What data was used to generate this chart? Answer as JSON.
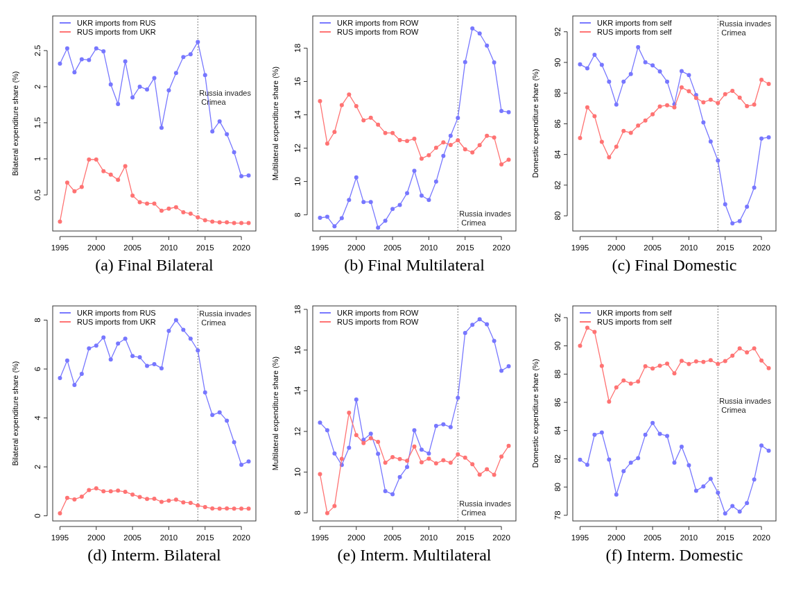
{
  "chart_data": [
    {
      "type": "line",
      "title": "(a) Final Bilateral",
      "ylabel": "Bilateral expenditure share (%)",
      "x": [
        1995,
        1996,
        1997,
        1998,
        1999,
        2000,
        2001,
        2002,
        2003,
        2004,
        2005,
        2006,
        2007,
        2008,
        2009,
        2010,
        2011,
        2012,
        2013,
        2014,
        2015,
        2016,
        2017,
        2018,
        2019,
        2020,
        2021
      ],
      "xlim": [
        1994,
        2022
      ],
      "xticks": [
        1995,
        2000,
        2005,
        2010,
        2015,
        2020
      ],
      "ylim": [
        0.0,
        2.98
      ],
      "yticks": [
        0.5,
        1.0,
        1.5,
        2.0,
        2.5
      ],
      "marker": "circle",
      "line_style": "solid",
      "legend": "top left",
      "series": [
        {
          "name": "UKR imports from RUS",
          "color": "#7777ff",
          "values": [
            2.32,
            2.53,
            2.2,
            2.38,
            2.37,
            2.53,
            2.49,
            2.03,
            1.76,
            2.35,
            1.85,
            2.0,
            1.96,
            2.12,
            1.43,
            1.95,
            2.19,
            2.41,
            2.45,
            2.62,
            2.16,
            1.38,
            1.52,
            1.34,
            1.09,
            0.76,
            0.77
          ]
        },
        {
          "name": "RUS imports from UKR",
          "color": "#ff7373",
          "values": [
            0.13,
            0.67,
            0.55,
            0.61,
            0.99,
            0.99,
            0.83,
            0.78,
            0.71,
            0.9,
            0.49,
            0.4,
            0.38,
            0.38,
            0.28,
            0.31,
            0.33,
            0.26,
            0.24,
            0.19,
            0.15,
            0.13,
            0.12,
            0.12,
            0.11,
            0.11,
            0.11
          ]
        }
      ],
      "ref_lines": [
        {
          "axis": "x",
          "value": 2014,
          "line_style": "dotted",
          "color": "#555555",
          "label": "Russia invades\nCrimea"
        }
      ]
    },
    {
      "type": "line",
      "title": "(b) Final Multilateral",
      "ylabel": "Multilateral expenditure share (%)",
      "x": [
        1995,
        1996,
        1997,
        1998,
        1999,
        2000,
        2001,
        2002,
        2003,
        2004,
        2005,
        2006,
        2007,
        2008,
        2009,
        2010,
        2011,
        2012,
        2013,
        2014,
        2015,
        2016,
        2017,
        2018,
        2019,
        2020,
        2021
      ],
      "xlim": [
        1994,
        2022
      ],
      "xticks": [
        1995,
        2000,
        2005,
        2010,
        2015,
        2020
      ],
      "ylim": [
        7.03,
        19.93
      ],
      "yticks": [
        8,
        10,
        12,
        14,
        16,
        18
      ],
      "marker": "circle",
      "line_style": "solid",
      "legend": "top left",
      "series": [
        {
          "name": "UKR imports from ROW",
          "color": "#7777ff",
          "values": [
            7.82,
            7.88,
            7.31,
            7.8,
            8.89,
            10.24,
            8.77,
            8.77,
            7.23,
            7.64,
            8.35,
            8.59,
            9.3,
            10.64,
            9.15,
            8.89,
            9.99,
            11.53,
            12.74,
            13.81,
            17.16,
            19.18,
            18.88,
            18.15,
            17.14,
            14.23,
            14.16
          ]
        },
        {
          "name": "RUS imports from ROW",
          "color": "#ff7373",
          "values": [
            14.82,
            12.27,
            12.97,
            14.58,
            15.22,
            14.52,
            13.67,
            13.82,
            13.41,
            12.91,
            12.91,
            12.48,
            12.43,
            12.56,
            11.37,
            11.58,
            12.02,
            12.35,
            12.19,
            12.47,
            11.93,
            11.74,
            12.18,
            12.74,
            12.64,
            11.03,
            11.31
          ]
        }
      ],
      "ref_lines": [
        {
          "axis": "x",
          "value": 2014,
          "line_style": "dotted",
          "color": "#555555",
          "label": "Russia invades\nCrimea"
        }
      ]
    },
    {
      "type": "line",
      "title": "(c) Final Domestic",
      "ylabel": "Domestic expenditure share (%)",
      "x": [
        1995,
        1996,
        1997,
        1998,
        1999,
        2000,
        2001,
        2002,
        2003,
        2004,
        2005,
        2006,
        2007,
        2008,
        2009,
        2010,
        2011,
        2012,
        2013,
        2014,
        2015,
        2016,
        2017,
        2018,
        2019,
        2020,
        2021
      ],
      "xlim": [
        1994,
        2022
      ],
      "xticks": [
        1995,
        2000,
        2005,
        2010,
        2015,
        2020
      ],
      "ylim": [
        79.01,
        93.03
      ],
      "yticks": [
        80,
        82,
        84,
        86,
        88,
        90,
        92
      ],
      "marker": "circle",
      "line_style": "solid",
      "legend": "top left",
      "series": [
        {
          "name": "UKR imports from self",
          "color": "#7777ff",
          "values": [
            89.87,
            89.62,
            90.5,
            89.84,
            88.75,
            87.25,
            88.75,
            89.24,
            91.0,
            90.01,
            89.81,
            89.41,
            88.75,
            87.28,
            89.43,
            89.18,
            87.87,
            86.09,
            84.84,
            83.6,
            80.75,
            79.51,
            79.66,
            80.59,
            81.84,
            85.04,
            85.12
          ]
        },
        {
          "name": "RUS imports from self",
          "color": "#ff7373",
          "values": [
            85.07,
            87.07,
            86.5,
            84.82,
            83.81,
            84.51,
            85.53,
            85.41,
            85.88,
            86.21,
            86.62,
            87.13,
            87.21,
            87.07,
            88.37,
            88.12,
            87.68,
            87.4,
            87.57,
            87.35,
            87.93,
            88.15,
            87.71,
            87.15,
            87.25,
            88.87,
            88.6
          ]
        }
      ],
      "ref_lines": [
        {
          "axis": "x",
          "value": 2014,
          "line_style": "dotted",
          "color": "#555555",
          "label": "Russia invades\nCrimea"
        }
      ]
    },
    {
      "type": "line",
      "title": "(d) Interm. Bilateral",
      "ylabel": "Bilateral expenditure share (%)",
      "x": [
        1995,
        1996,
        1997,
        1998,
        1999,
        2000,
        2001,
        2002,
        2003,
        2004,
        2005,
        2006,
        2007,
        2008,
        2009,
        2010,
        2011,
        2012,
        2013,
        2014,
        2015,
        2016,
        2017,
        2018,
        2019,
        2020,
        2021
      ],
      "xlim": [
        1994,
        2022
      ],
      "xticks": [
        1995,
        2000,
        2005,
        2010,
        2015,
        2020
      ],
      "ylim": [
        -0.21,
        8.58
      ],
      "yticks": [
        0,
        2,
        4,
        6,
        8
      ],
      "marker": "circle",
      "line_style": "solid",
      "legend": "top left",
      "series": [
        {
          "name": "UKR imports from RUS",
          "color": "#7777ff",
          "values": [
            5.63,
            6.35,
            5.35,
            5.8,
            6.84,
            6.96,
            7.29,
            6.39,
            7.04,
            7.24,
            6.53,
            6.48,
            6.13,
            6.2,
            6.03,
            7.56,
            8.0,
            7.6,
            7.24,
            6.76,
            5.04,
            4.12,
            4.23,
            3.89,
            3.01,
            2.09,
            2.22
          ]
        },
        {
          "name": "RUS imports from UKR",
          "color": "#ff7373",
          "values": [
            0.1,
            0.73,
            0.67,
            0.78,
            1.05,
            1.12,
            1.0,
            1.0,
            1.03,
            0.98,
            0.87,
            0.77,
            0.69,
            0.7,
            0.57,
            0.62,
            0.66,
            0.55,
            0.53,
            0.42,
            0.36,
            0.3,
            0.29,
            0.3,
            0.29,
            0.29,
            0.29
          ]
        }
      ],
      "ref_lines": [
        {
          "axis": "x",
          "value": 2014,
          "line_style": "dotted",
          "color": "#555555",
          "label": "Russia invades\nCrimea"
        }
      ]
    },
    {
      "type": "line",
      "title": "(e) Interm. Multilateral",
      "ylabel": "Multilateral expenditure share (%)",
      "x": [
        1995,
        1996,
        1997,
        1998,
        1999,
        2000,
        2001,
        2002,
        2003,
        2004,
        2005,
        2006,
        2007,
        2008,
        2009,
        2010,
        2011,
        2012,
        2013,
        2014,
        2015,
        2016,
        2017,
        2018,
        2019,
        2020,
        2021
      ],
      "xlim": [
        1994,
        2022
      ],
      "xticks": [
        1995,
        2000,
        2005,
        2010,
        2015,
        2020
      ],
      "ylim": [
        7.6,
        18.17
      ],
      "yticks": [
        8,
        10,
        12,
        14,
        16,
        18
      ],
      "marker": "circle",
      "line_style": "solid",
      "legend": "top left",
      "series": [
        {
          "name": "UKR imports from ROW",
          "color": "#7777ff",
          "values": [
            12.43,
            12.06,
            10.92,
            10.35,
            11.2,
            13.57,
            11.59,
            11.89,
            10.9,
            9.07,
            8.91,
            9.76,
            10.25,
            12.06,
            11.1,
            10.92,
            12.27,
            12.35,
            12.21,
            13.65,
            16.84,
            17.24,
            17.51,
            17.27,
            16.45,
            14.98,
            15.2
          ]
        },
        {
          "name": "RUS imports from ROW",
          "color": "#ff7373",
          "values": [
            9.9,
            7.98,
            8.33,
            10.65,
            12.92,
            11.82,
            11.43,
            11.67,
            11.49,
            10.46,
            10.74,
            10.64,
            10.56,
            11.26,
            10.48,
            10.66,
            10.43,
            10.58,
            10.46,
            10.87,
            10.71,
            10.39,
            9.88,
            10.14,
            9.87,
            10.76,
            11.29
          ]
        }
      ],
      "ref_lines": [
        {
          "axis": "x",
          "value": 2014,
          "line_style": "dotted",
          "color": "#555555",
          "label": "Russia invades\nCrimea"
        }
      ]
    },
    {
      "type": "line",
      "title": "(f) Interm. Domestic",
      "ylabel": "Domestic expenditure share (%)",
      "x": [
        1995,
        1996,
        1997,
        1998,
        1999,
        2000,
        2001,
        2002,
        2003,
        2004,
        2005,
        2006,
        2007,
        2008,
        2009,
        2010,
        2011,
        2012,
        2013,
        2014,
        2015,
        2016,
        2017,
        2018,
        2019,
        2020,
        2021
      ],
      "xlim": [
        1994,
        2022
      ],
      "xticks": [
        1995,
        2000,
        2005,
        2010,
        2015,
        2020
      ],
      "ylim": [
        77.6,
        92.83
      ],
      "yticks": [
        78,
        80,
        82,
        84,
        86,
        88,
        90,
        92
      ],
      "marker": "circle",
      "line_style": "solid",
      "legend": "top left",
      "series": [
        {
          "name": "UKR imports from self",
          "color": "#7777ff",
          "values": [
            81.94,
            81.58,
            83.71,
            83.86,
            81.95,
            79.47,
            81.12,
            81.73,
            82.05,
            83.7,
            84.54,
            83.76,
            83.62,
            81.73,
            82.86,
            81.54,
            79.74,
            80.05,
            80.58,
            79.6,
            78.13,
            78.66,
            78.26,
            78.86,
            80.54,
            82.94,
            82.58
          ]
        },
        {
          "name": "RUS imports from self",
          "color": "#ff7373",
          "values": [
            90.0,
            91.28,
            90.99,
            88.58,
            86.05,
            87.06,
            87.55,
            87.33,
            87.47,
            88.56,
            88.4,
            88.59,
            88.74,
            88.05,
            88.94,
            88.72,
            88.9,
            88.86,
            88.98,
            88.72,
            88.93,
            89.3,
            89.82,
            89.54,
            89.82,
            88.96,
            88.42
          ]
        }
      ],
      "ref_lines": [
        {
          "axis": "x",
          "value": 2014,
          "line_style": "dotted",
          "color": "#555555",
          "label": "Russia invades\nCrimea"
        }
      ]
    }
  ]
}
